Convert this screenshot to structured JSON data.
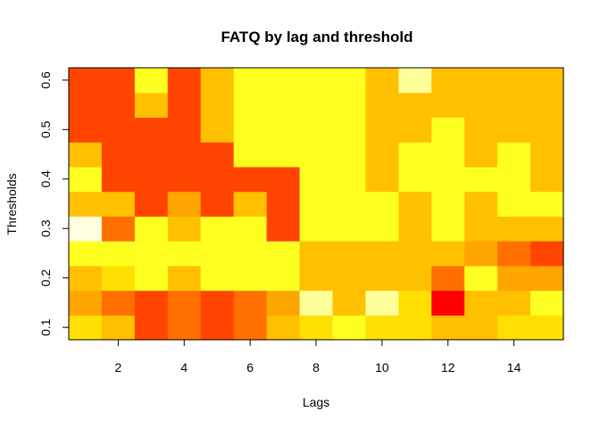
{
  "chart_data": {
    "type": "heatmap",
    "title": "FATQ by lag and threshold",
    "xlabel": "Lags",
    "ylabel": "Thresholds",
    "x": [
      1,
      2,
      3,
      4,
      5,
      6,
      7,
      8,
      9,
      10,
      11,
      12,
      13,
      14,
      15
    ],
    "y": [
      0.1,
      0.15,
      0.2,
      0.25,
      0.3,
      0.35,
      0.4,
      0.45,
      0.5,
      0.55,
      0.6
    ],
    "xlim": [
      0.5,
      15.5
    ],
    "ylim": [
      0.075,
      0.625
    ],
    "x_ticks": [
      2,
      4,
      6,
      8,
      10,
      12,
      14
    ],
    "y_ticks": [
      0.1,
      0.2,
      0.3,
      0.4,
      0.5,
      0.6
    ],
    "legend": "none",
    "grid": false,
    "palette": [
      "#FF0000",
      "#FF4500",
      "#FF7000",
      "#FFA500",
      "#FFC000",
      "#FFE000",
      "#FFFF20",
      "#FFFF99",
      "#FFFFE0"
    ],
    "z": [
      [
        5,
        4,
        1,
        2,
        1,
        2,
        4,
        5,
        6,
        5,
        5,
        4,
        4,
        5,
        5
      ],
      [
        3,
        2,
        1,
        2,
        1,
        2,
        3,
        7,
        4,
        7,
        5,
        0,
        4,
        4,
        6
      ],
      [
        4,
        5,
        6,
        4,
        6,
        6,
        6,
        4,
        4,
        4,
        4,
        2,
        6,
        3,
        3
      ],
      [
        6,
        6,
        6,
        6,
        6,
        6,
        6,
        4,
        4,
        4,
        4,
        4,
        3,
        2,
        1
      ],
      [
        8,
        2,
        6,
        4,
        6,
        6,
        1,
        6,
        6,
        6,
        4,
        6,
        4,
        4,
        4
      ],
      [
        4,
        4,
        1,
        3,
        1,
        4,
        1,
        6,
        6,
        6,
        4,
        6,
        4,
        6,
        6
      ],
      [
        6,
        1,
        1,
        1,
        1,
        1,
        1,
        6,
        6,
        4,
        6,
        6,
        6,
        6,
        4
      ],
      [
        4,
        1,
        1,
        1,
        1,
        6,
        6,
        6,
        6,
        4,
        6,
        6,
        4,
        6,
        4
      ],
      [
        1,
        1,
        1,
        1,
        4,
        6,
        6,
        6,
        6,
        4,
        4,
        6,
        4,
        4,
        4
      ],
      [
        1,
        1,
        4,
        1,
        4,
        6,
        6,
        6,
        6,
        4,
        4,
        4,
        4,
        4,
        4
      ],
      [
        1,
        1,
        6,
        1,
        4,
        6,
        6,
        6,
        6,
        4,
        7,
        4,
        4,
        4,
        4
      ]
    ]
  }
}
